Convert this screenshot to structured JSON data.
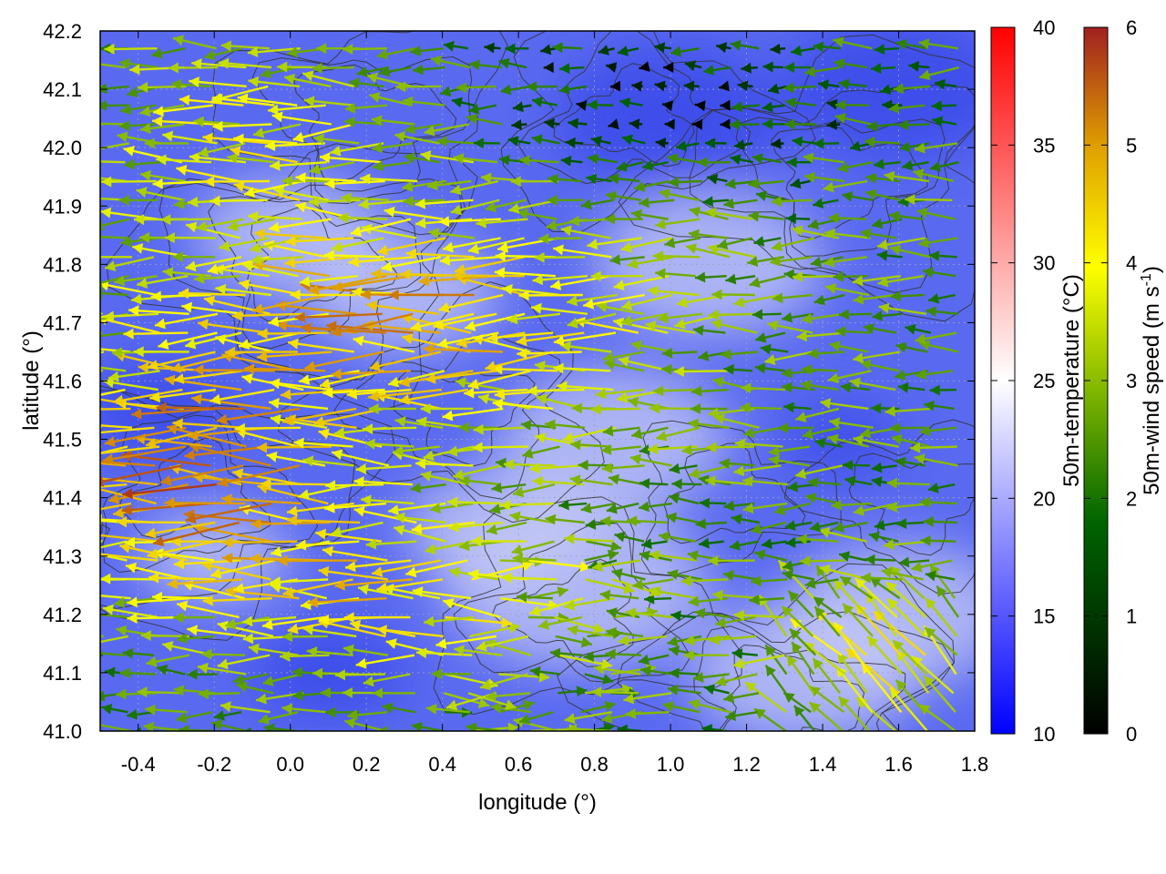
{
  "chart_data": {
    "type": "vector-field",
    "xlabel": "longitude (°)",
    "ylabel": "latitude (°)",
    "xlim": [
      -0.5,
      1.8
    ],
    "ylim": [
      41.0,
      42.2
    ],
    "xticks": [
      "-0.4",
      "-0.2",
      "0.0",
      "0.2",
      "0.4",
      "0.6",
      "0.8",
      "1.0",
      "1.2",
      "1.4",
      "1.6",
      "1.8"
    ],
    "yticks": [
      "41.0",
      "41.1",
      "41.2",
      "41.3",
      "41.4",
      "41.5",
      "41.6",
      "41.7",
      "41.8",
      "41.9",
      "42.0",
      "42.1",
      "42.2"
    ],
    "grid": true,
    "layers": [
      "temperature-field",
      "contour-lines",
      "wind-vectors"
    ],
    "temperature_colorbar": {
      "label": "50m-temperature (°C)",
      "range": [
        10,
        40
      ],
      "ticks": [
        "10",
        "15",
        "20",
        "25",
        "30",
        "35",
        "40"
      ],
      "colors": [
        "#0000ff",
        "#ffffff",
        "#ff0000"
      ]
    },
    "wind_colorbar": {
      "label": "50m-wind speed (m s-1)",
      "label_main": "50m-wind speed (m s",
      "label_sup": "-1",
      "label_end": ")",
      "range": [
        0,
        6
      ],
      "ticks": [
        "0",
        "1",
        "2",
        "3",
        "4",
        "5",
        "6"
      ],
      "colors": [
        "#000000",
        "#006400",
        "#7cb400",
        "#ffff00",
        "#e0a000",
        "#a02020"
      ]
    },
    "field_colors": {
      "background": "#5a6af0",
      "cool": "#3a48e8",
      "warm": "#c8ccf6"
    },
    "contour_color": "#333333",
    "dominant_wind_direction": "east-to-west"
  }
}
